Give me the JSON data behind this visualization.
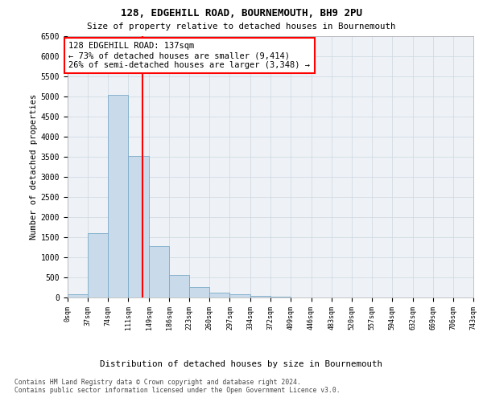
{
  "title": "128, EDGEHILL ROAD, BOURNEMOUTH, BH9 2PU",
  "subtitle": "Size of property relative to detached houses in Bournemouth",
  "xlabel": "Distribution of detached houses by size in Bournemouth",
  "ylabel": "Number of detached properties",
  "bar_color": "#c9daea",
  "bar_edge_color": "#7aaac8",
  "background_color": "#eef2f7",
  "vline_x": 137,
  "vline_color": "red",
  "annotation_text": "128 EDGEHILL ROAD: 137sqm\n← 73% of detached houses are smaller (9,414)\n26% of semi-detached houses are larger (3,348) →",
  "bin_edges": [
    0,
    37,
    74,
    111,
    149,
    186,
    223,
    260,
    297,
    334,
    372,
    409,
    446,
    483,
    520,
    557,
    594,
    632,
    669,
    706,
    743
  ],
  "bin_values": [
    75,
    1600,
    5050,
    3520,
    1280,
    570,
    270,
    130,
    80,
    50,
    30,
    10,
    0,
    0,
    0,
    0,
    0,
    0,
    0,
    0
  ],
  "ylim": [
    0,
    6500
  ],
  "yticks": [
    0,
    500,
    1000,
    1500,
    2000,
    2500,
    3000,
    3500,
    4000,
    4500,
    5000,
    5500,
    6000,
    6500
  ],
  "footer_line1": "Contains HM Land Registry data © Crown copyright and database right 2024.",
  "footer_line2": "Contains public sector information licensed under the Open Government Licence v3.0.",
  "grid_color": "#ccd6e0"
}
